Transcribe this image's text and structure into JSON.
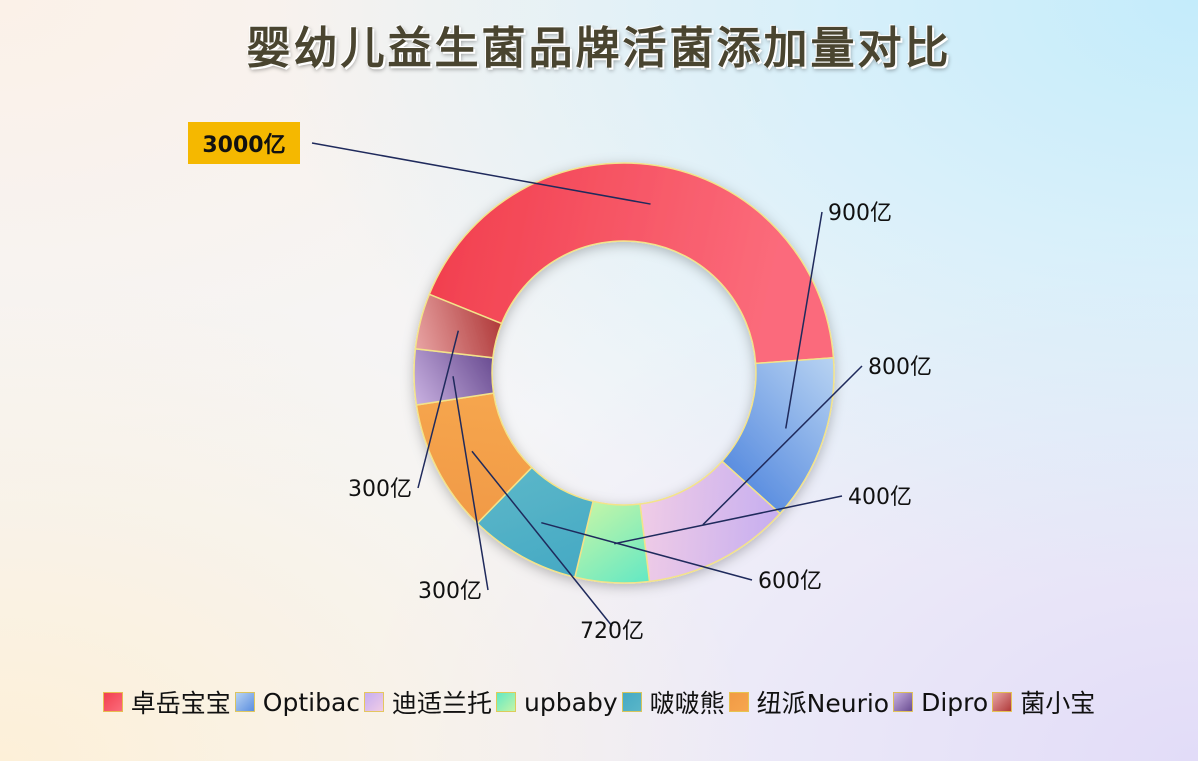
{
  "title": "婴幼儿益生菌品牌活菌添加量对比",
  "chart_data": {
    "type": "pie",
    "donut": true,
    "unit": "亿",
    "slices": [
      {
        "name": "卓岳宝宝",
        "value": 3000,
        "label": "3000亿",
        "color": "#f2404f",
        "color2": "#fb6b7b"
      },
      {
        "name": "Optibac",
        "value": 900,
        "label": "900亿",
        "color": "#b8d3f2",
        "color2": "#5b8ee0"
      },
      {
        "name": "迪适兰托",
        "value": 800,
        "label": "800亿",
        "color": "#c6aef0",
        "color2": "#f0cce6"
      },
      {
        "name": "upbaby",
        "value": 400,
        "label": "400亿",
        "color": "#63e8c4",
        "color2": "#c2f5a8"
      },
      {
        "name": "啵啵熊",
        "value": 600,
        "label": "600亿",
        "color": "#45a9c4",
        "color2": "#5ab6c8"
      },
      {
        "name": "纽派Neurio",
        "value": 720,
        "label": "720亿",
        "color": "#f19a46",
        "color2": "#f6a64e"
      },
      {
        "name": "Dipro",
        "value": 300,
        "label": "300亿",
        "color": "#c8b0e0",
        "color2": "#6a4d92"
      },
      {
        "name": "菌小宝",
        "value": 300,
        "label": "300亿",
        "color": "#e8a4a4",
        "color2": "#b03a3a"
      }
    ],
    "highlight_label": "3000亿",
    "highlight_color": "#f5b800",
    "legend_position": "bottom"
  }
}
